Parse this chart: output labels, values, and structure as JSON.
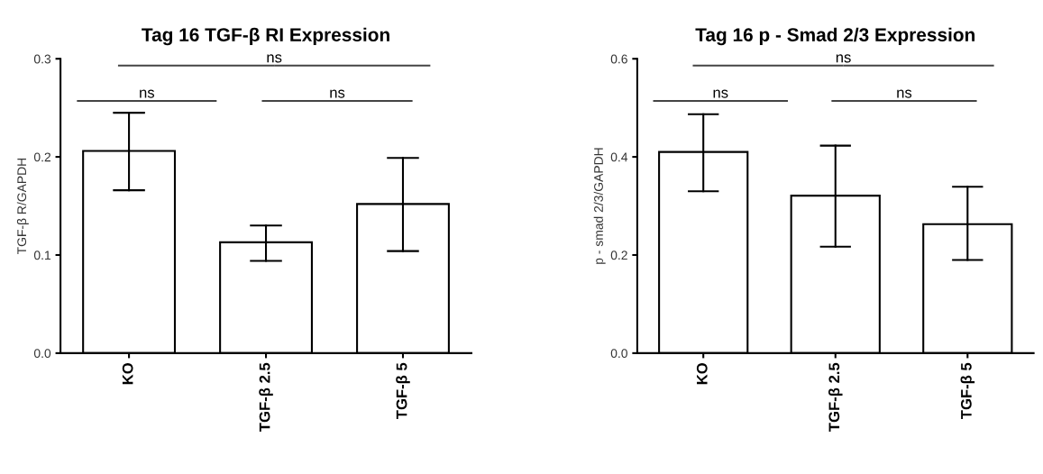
{
  "chart_data": [
    {
      "type": "bar",
      "title": "Tag 16 TGF-β RI Expression",
      "ylabel": "TGF-β R/GAPDH",
      "categories": [
        "KO",
        "TGF-β 2.5",
        "TGF-β 5"
      ],
      "values": [
        0.206,
        0.113,
        0.152
      ],
      "errors": [
        [
          0.166,
          0.245
        ],
        [
          0.094,
          0.13
        ],
        [
          0.104,
          0.199
        ]
      ],
      "color": "#ffffff",
      "ylim": [
        0,
        0.3
      ],
      "yticks": [
        {
          "value": 0,
          "label": "0.0"
        },
        0.1,
        0.2,
        0.3
      ],
      "annotations": [
        "ns",
        "ns",
        "ns"
      ],
      "grid": false,
      "legend": false
    },
    {
      "type": "bar",
      "title": "Tag 16 p - Smad 2/3 Expression",
      "ylabel": "p - smad 2/3/GAPDH",
      "categories": [
        "KO",
        "TGF-β 2.5",
        "TGF-β 5"
      ],
      "values": [
        0.41,
        0.321,
        0.263
      ],
      "errors": [
        [
          0.33,
          0.487
        ],
        [
          0.217,
          0.423
        ],
        [
          0.19,
          0.339
        ]
      ],
      "color": "#ffffff",
      "ylim": [
        0,
        0.6
      ],
      "yticks": [
        {
          "value": 0,
          "label": "0.0"
        },
        0.2,
        0.4,
        0.6
      ],
      "annotations": [
        "ns",
        "ns",
        "ns"
      ],
      "grid": false,
      "legend": false
    }
  ]
}
